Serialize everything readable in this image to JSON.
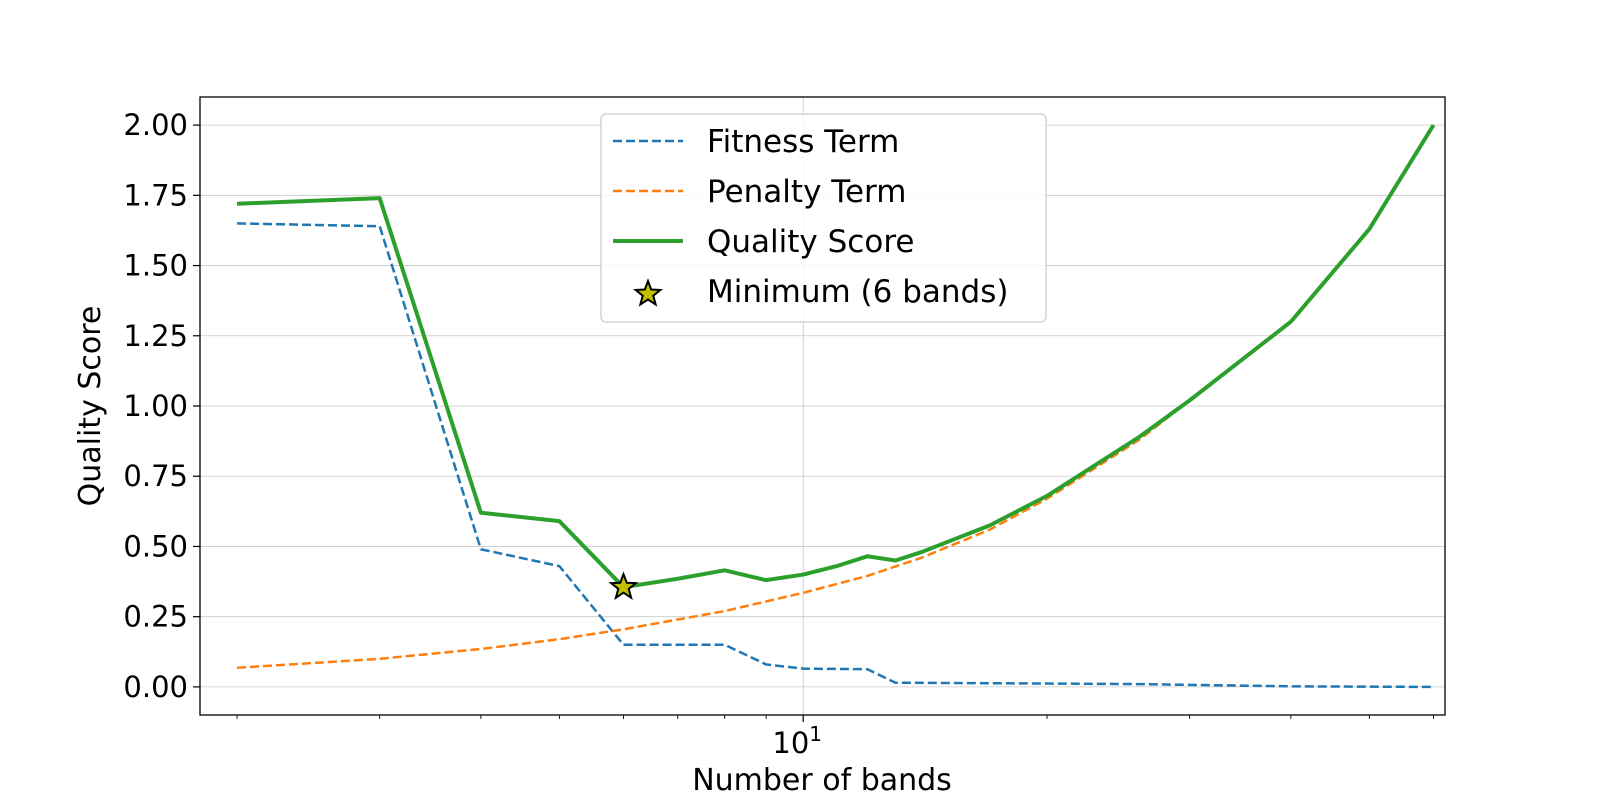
{
  "chart_data": {
    "type": "line",
    "title": "",
    "xlabel": "Number of bands",
    "ylabel": "Quality Score",
    "xscale": "log",
    "xlim": [
      1.8,
      62
    ],
    "ylim": [
      -0.1,
      2.1
    ],
    "x_ticks": [
      {
        "value": 10,
        "base": "10",
        "exp": "1"
      }
    ],
    "y_ticks": [
      {
        "value": 0.0,
        "label": "0.00"
      },
      {
        "value": 0.25,
        "label": "0.25"
      },
      {
        "value": 0.5,
        "label": "0.50"
      },
      {
        "value": 0.75,
        "label": "0.75"
      },
      {
        "value": 1.0,
        "label": "1.00"
      },
      {
        "value": 1.25,
        "label": "1.25"
      },
      {
        "value": 1.5,
        "label": "1.50"
      },
      {
        "value": 1.75,
        "label": "1.75"
      },
      {
        "value": 2.0,
        "label": "2.00"
      }
    ],
    "grid": true,
    "legend_position": "top-center",
    "series": [
      {
        "name": "Fitness Term",
        "style": "dashed",
        "color": "#1f77b4",
        "x": [
          2,
          3,
          4,
          5,
          6,
          8,
          9,
          10,
          12,
          13,
          20,
          26,
          40,
          60
        ],
        "y": [
          1.65,
          1.64,
          0.49,
          0.43,
          0.15,
          0.15,
          0.08,
          0.065,
          0.063,
          0.015,
          0.012,
          0.01,
          0.002,
          0.0
        ]
      },
      {
        "name": "Penalty Term",
        "style": "dashed",
        "color": "#ff7f0e",
        "x": [
          2,
          3,
          4,
          5,
          6,
          8,
          10,
          12,
          14,
          17,
          20,
          26,
          30,
          40,
          50,
          60
        ],
        "y": [
          0.068,
          0.1,
          0.135,
          0.17,
          0.205,
          0.27,
          0.335,
          0.395,
          0.46,
          0.56,
          0.67,
          0.88,
          1.02,
          1.3,
          1.63,
          2.0
        ]
      },
      {
        "name": "Quality Score",
        "style": "solid",
        "color": "#2ca02c",
        "x": [
          2,
          3,
          4,
          5,
          6,
          7,
          8,
          9,
          10,
          11,
          12,
          13,
          14,
          17,
          20,
          26,
          30,
          40,
          50,
          60
        ],
        "y": [
          1.72,
          1.74,
          0.62,
          0.59,
          0.355,
          0.385,
          0.415,
          0.38,
          0.4,
          0.43,
          0.465,
          0.45,
          0.48,
          0.575,
          0.68,
          0.89,
          1.02,
          1.3,
          1.63,
          2.0
        ]
      },
      {
        "name": "Minimum (6 bands)",
        "style": "marker-star",
        "color": "#bfbf00",
        "x": [
          6
        ],
        "y": [
          0.355
        ]
      }
    ]
  }
}
